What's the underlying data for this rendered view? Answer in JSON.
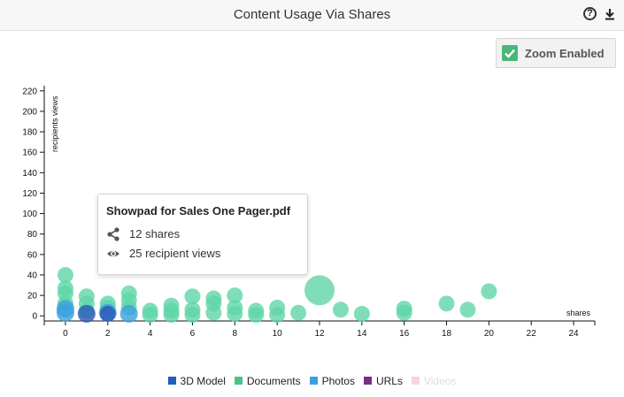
{
  "header": {
    "title": "Content Usage Via Shares",
    "help_glyph": "?",
    "help_icon": "help-circle-icon",
    "download_icon": "download-icon"
  },
  "zoom": {
    "label": "Zoom Enabled",
    "checked": true,
    "icon": "check-icon",
    "color": "#4bb679"
  },
  "tooltip": {
    "title": "Showpad for Sales One Pager.pdf",
    "shares_text": "12 shares",
    "views_text": "25 recipient views",
    "shares_icon": "share-icon",
    "views_icon": "eye-icon"
  },
  "legend": [
    {
      "label": "3D Model",
      "color": "#1f5fbf",
      "active": true
    },
    {
      "label": "Documents",
      "color": "#4dc08a",
      "active": true
    },
    {
      "label": "Photos",
      "color": "#3aa0e0",
      "active": true
    },
    {
      "label": "URLs",
      "color": "#7b2d8b",
      "active": true
    },
    {
      "label": "Videos",
      "color": "#f6d4e2",
      "active": false
    }
  ],
  "chart_data": {
    "type": "scatter",
    "title": "Content Usage Via Shares",
    "xlabel": "shares",
    "ylabel": "recipients views",
    "xlim": [
      -1,
      25
    ],
    "ylim": [
      -5,
      225
    ],
    "xticks": [
      0,
      2,
      4,
      6,
      8,
      10,
      12,
      14,
      16,
      18,
      20,
      22,
      24
    ],
    "yticks": [
      0,
      20,
      40,
      60,
      80,
      100,
      120,
      140,
      160,
      180,
      200,
      220
    ],
    "grid": false,
    "series": [
      {
        "name": "Documents",
        "color": "#5fd6a8",
        "points": [
          {
            "x": 0,
            "y": 40,
            "r": 9
          },
          {
            "x": 0,
            "y": 27,
            "r": 9
          },
          {
            "x": 0,
            "y": 22,
            "r": 9
          },
          {
            "x": 0,
            "y": 12,
            "r": 9
          },
          {
            "x": 1,
            "y": 19,
            "r": 9
          },
          {
            "x": 1,
            "y": 12,
            "r": 9
          },
          {
            "x": 1,
            "y": 5,
            "r": 9
          },
          {
            "x": 2,
            "y": 12,
            "r": 9
          },
          {
            "x": 2,
            "y": 8,
            "r": 9
          },
          {
            "x": 3,
            "y": 22,
            "r": 9
          },
          {
            "x": 3,
            "y": 15,
            "r": 9
          },
          {
            "x": 3,
            "y": 8,
            "r": 9
          },
          {
            "x": 4,
            "y": 5,
            "r": 9
          },
          {
            "x": 4,
            "y": 1,
            "r": 9
          },
          {
            "x": 5,
            "y": 10,
            "r": 9
          },
          {
            "x": 5,
            "y": 5,
            "r": 9
          },
          {
            "x": 5,
            "y": 1,
            "r": 9
          },
          {
            "x": 6,
            "y": 19,
            "r": 9
          },
          {
            "x": 6,
            "y": 6,
            "r": 9
          },
          {
            "x": 6,
            "y": 1,
            "r": 9
          },
          {
            "x": 7,
            "y": 17,
            "r": 9
          },
          {
            "x": 7,
            "y": 12,
            "r": 9
          },
          {
            "x": 7,
            "y": 3,
            "r": 9
          },
          {
            "x": 8,
            "y": 20,
            "r": 9
          },
          {
            "x": 8,
            "y": 8,
            "r": 9
          },
          {
            "x": 8,
            "y": 2,
            "r": 9
          },
          {
            "x": 9,
            "y": 5,
            "r": 9
          },
          {
            "x": 9,
            "y": 1,
            "r": 9
          },
          {
            "x": 10,
            "y": 8,
            "r": 9
          },
          {
            "x": 10,
            "y": 1,
            "r": 9
          },
          {
            "x": 11,
            "y": 3,
            "r": 9
          },
          {
            "x": 12,
            "y": 25,
            "r": 17
          },
          {
            "x": 13,
            "y": 6,
            "r": 9
          },
          {
            "x": 14,
            "y": 2,
            "r": 9
          },
          {
            "x": 16,
            "y": 7,
            "r": 9
          },
          {
            "x": 16,
            "y": 3,
            "r": 9
          },
          {
            "x": 18,
            "y": 12,
            "r": 9
          },
          {
            "x": 19,
            "y": 6,
            "r": 9
          },
          {
            "x": 20,
            "y": 24,
            "r": 9
          }
        ]
      },
      {
        "name": "Photos",
        "color": "#3aa0e0",
        "points": [
          {
            "x": 0,
            "y": 7,
            "r": 10
          },
          {
            "x": 0,
            "y": 3,
            "r": 10
          },
          {
            "x": 2,
            "y": 3,
            "r": 10
          },
          {
            "x": 3,
            "y": 2,
            "r": 10
          }
        ]
      },
      {
        "name": "3D Model",
        "color": "#2a56b8",
        "points": [
          {
            "x": 1,
            "y": 2,
            "r": 10
          },
          {
            "x": 2,
            "y": 2,
            "r": 9
          }
        ]
      }
    ]
  }
}
